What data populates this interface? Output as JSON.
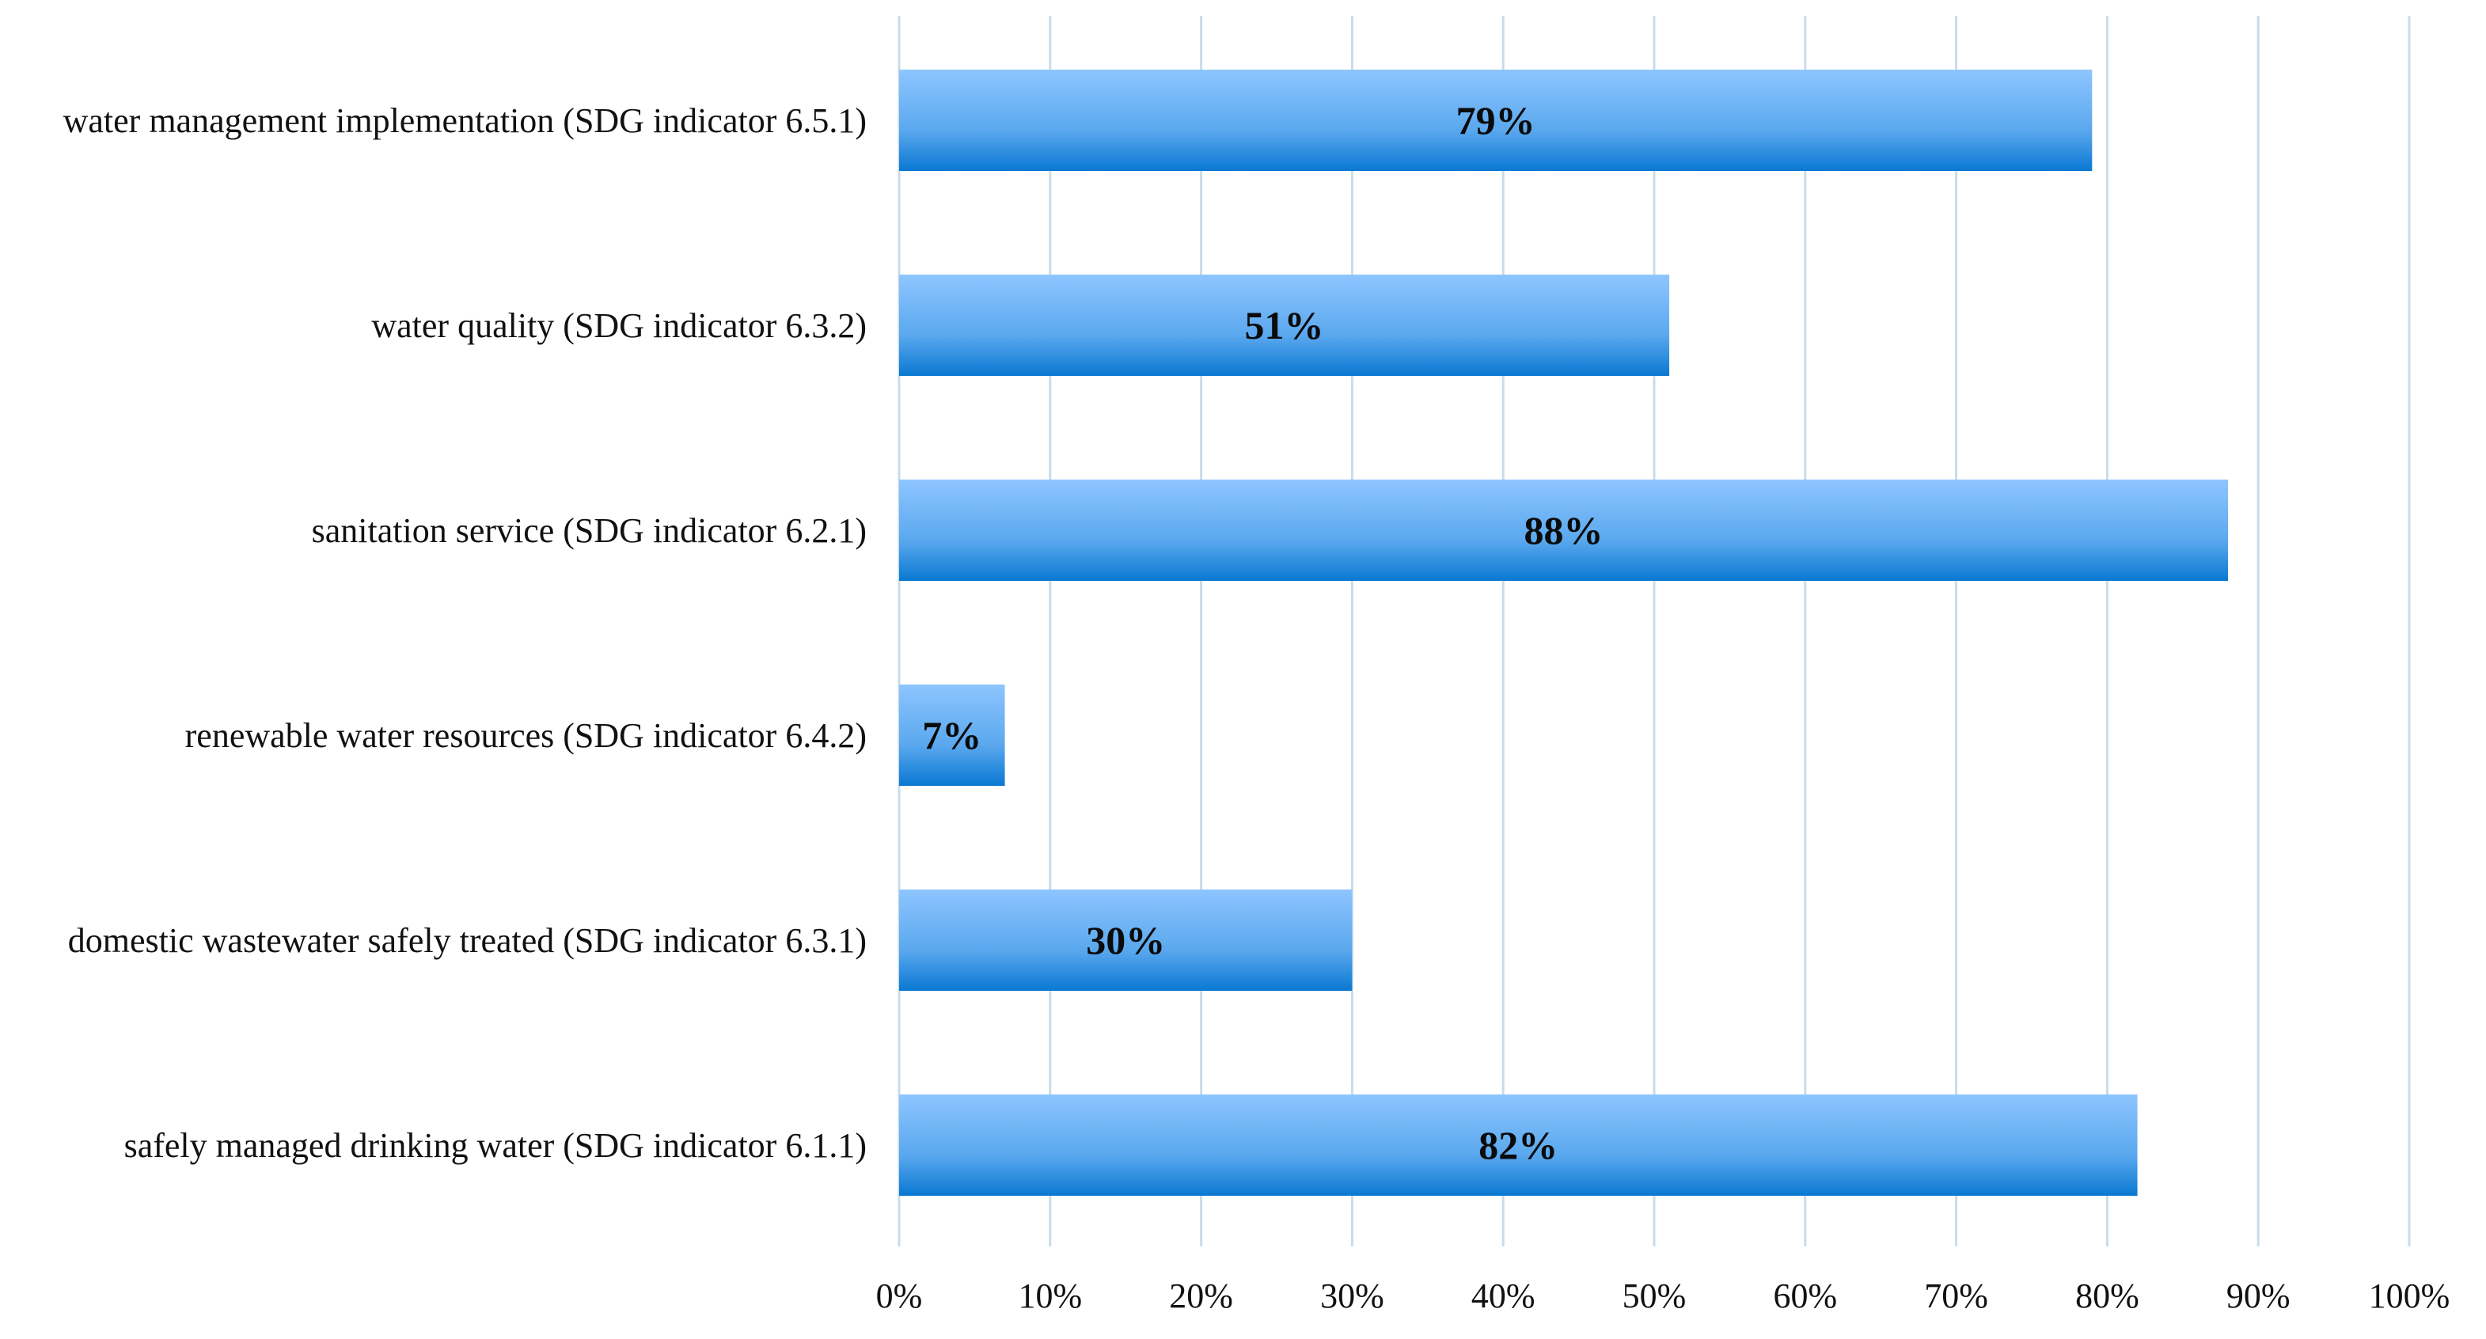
{
  "chart_data": {
    "type": "bar",
    "orientation": "horizontal",
    "title": "",
    "xlabel": "",
    "ylabel": "",
    "categories": [
      "water management implementation (SDG indicator 6.5.1)",
      "water quality (SDG indicator 6.3.2)",
      "sanitation service (SDG indicator 6.2.1)",
      "renewable water resources (SDG indicator 6.4.2)",
      "domestic wastewater safely treated (SDG indicator 6.3.1)",
      "safely managed drinking water (SDG indicator 6.1.1)"
    ],
    "values": [
      79,
      51,
      88,
      7,
      30,
      82
    ],
    "data_labels": [
      "79%",
      "51%",
      "88%",
      "7%",
      "30%",
      "82%"
    ],
    "xlim": [
      0,
      100
    ],
    "x_ticks": [
      0,
      10,
      20,
      30,
      40,
      50,
      60,
      70,
      80,
      90,
      100
    ],
    "x_tick_labels": [
      "0%",
      "10%",
      "20%",
      "30%",
      "40%",
      "50%",
      "60%",
      "70%",
      "80%",
      "90%",
      "100%"
    ],
    "grid": "vertical",
    "legend": "none",
    "colors": {
      "bar_top": "#8ec5ff",
      "bar_mid": "#5aa8ee",
      "bar_bottom": "#0a78d2",
      "grid": "#c9dcea"
    }
  }
}
